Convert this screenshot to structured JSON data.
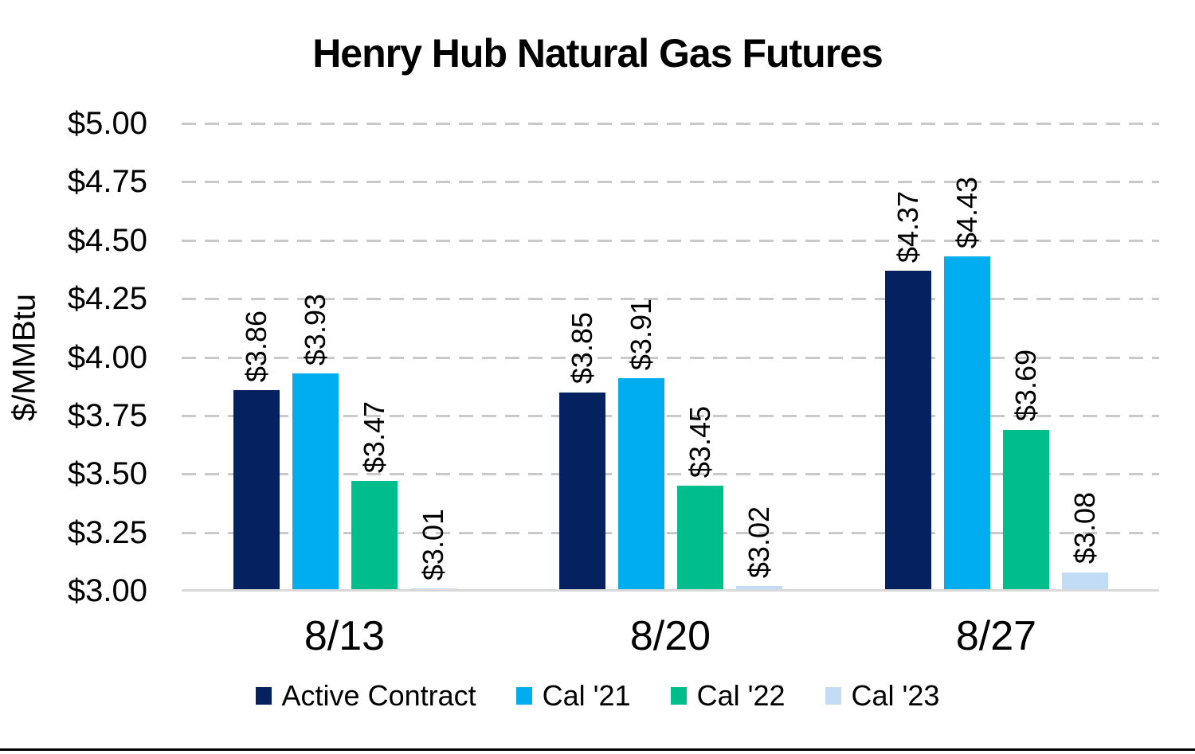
{
  "chart_data": {
    "type": "bar",
    "title": "Henry Hub Natural Gas Futures",
    "ylabel": "$/MMBtu",
    "xlabel": "",
    "categories": [
      "8/13",
      "8/20",
      "8/27"
    ],
    "series": [
      {
        "name": "Active Contract",
        "color": "#062160",
        "values": [
          3.86,
          3.85,
          4.37
        ]
      },
      {
        "name": "Cal '21",
        "color": "#00AEEF",
        "values": [
          3.93,
          3.91,
          4.43
        ]
      },
      {
        "name": "Cal '22",
        "color": "#00BE8C",
        "values": [
          3.47,
          3.45,
          3.69
        ]
      },
      {
        "name": "Cal '23",
        "color": "#C3DCF5",
        "values": [
          3.01,
          3.02,
          3.08
        ]
      }
    ],
    "bar_value_labels": [
      [
        "$3.86",
        "$3.93",
        "$3.47",
        "$3.01"
      ],
      [
        "$3.85",
        "$3.91",
        "$3.45",
        "$3.02"
      ],
      [
        "$4.37",
        "$4.43",
        "$3.69",
        "$3.08"
      ]
    ],
    "ylim": [
      3.0,
      5.0
    ],
    "ytick_step": 0.25,
    "y_ticks": [
      "$5.00",
      "$4.75",
      "$4.50",
      "$4.25",
      "$4.00",
      "$3.75",
      "$3.50",
      "$3.25",
      "$3.00"
    ],
    "value_prefix": "$",
    "grid": "dashed-horizontal",
    "gridline_color": "#C9C9C9",
    "axis_line_color": "#D9D9D9",
    "legend_position": "bottom",
    "data_label_rotation": 90
  }
}
